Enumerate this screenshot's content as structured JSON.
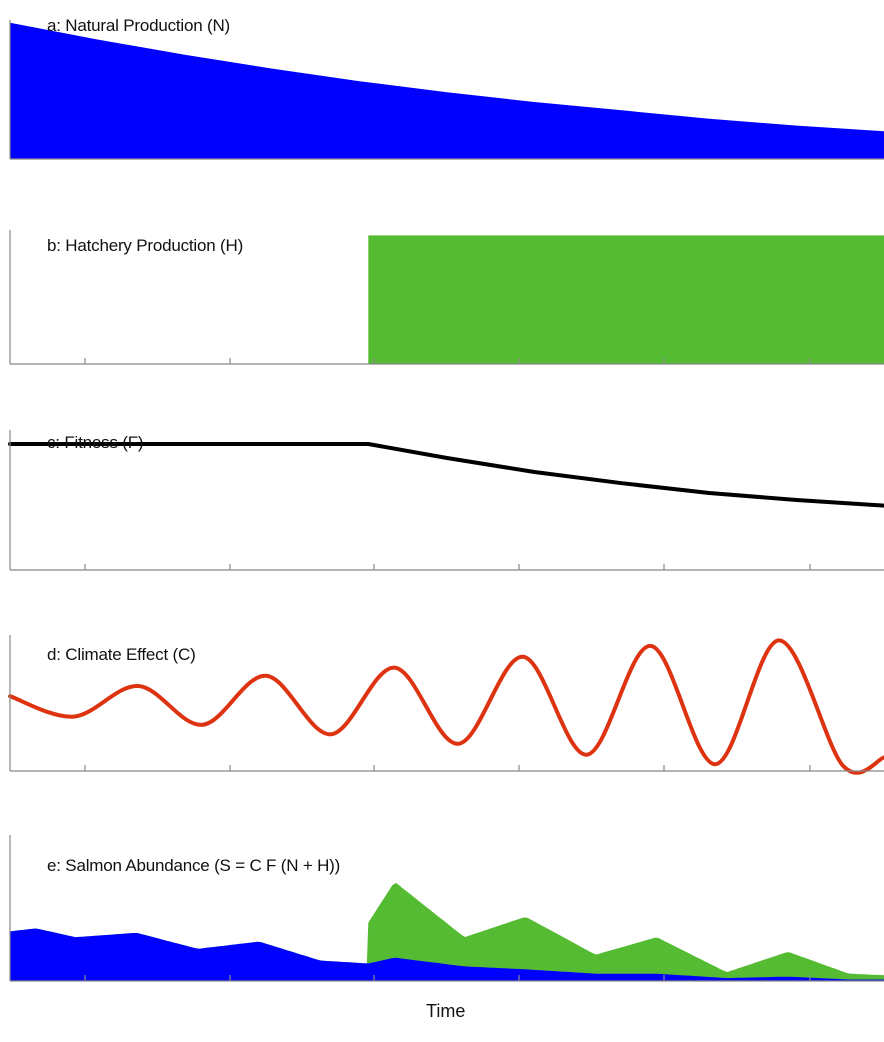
{
  "chart_data": {
    "type": "multi-panel",
    "xlabel": "Time",
    "x_domain": [
      0,
      100
    ],
    "hatchery_start": 41,
    "panels": [
      {
        "id": "a",
        "title": "a: Natural Production (N)",
        "type": "area",
        "color": "#0000ff",
        "ylim": [
          0,
          1
        ],
        "x": [
          0,
          10,
          20,
          30,
          40,
          50,
          60,
          70,
          80,
          90,
          100
        ],
        "values": [
          0.98,
          0.86,
          0.75,
          0.65,
          0.56,
          0.48,
          0.41,
          0.35,
          0.29,
          0.24,
          0.2
        ]
      },
      {
        "id": "b",
        "title": "b: Hatchery Production (H)",
        "type": "area",
        "color": "#55bb33",
        "ylim": [
          0,
          1
        ],
        "x": [
          0,
          41,
          41,
          100
        ],
        "values": [
          0,
          0,
          0.96,
          0.96
        ]
      },
      {
        "id": "c",
        "title": "c: Fitness (F)",
        "type": "line",
        "color": "#000000",
        "ylim": [
          0,
          1
        ],
        "x": [
          0,
          41,
          50,
          60,
          70,
          80,
          90,
          100
        ],
        "values": [
          0.9,
          0.9,
          0.8,
          0.7,
          0.62,
          0.55,
          0.5,
          0.46
        ]
      },
      {
        "id": "d",
        "title": "d: Climate Effect (C)",
        "type": "line",
        "color": "#dd3311",
        "ylim": [
          -1,
          1
        ],
        "x": [
          0,
          7.3,
          14.7,
          22,
          29.3,
          36.7,
          44,
          51.3,
          58.7,
          66,
          73.3,
          80.7,
          88,
          95.3,
          100
        ],
        "values": [
          0.1,
          -0.2,
          0.25,
          -0.32,
          0.4,
          -0.46,
          0.52,
          -0.6,
          0.68,
          -0.76,
          0.84,
          -0.9,
          0.92,
          -0.92,
          -0.8
        ]
      },
      {
        "id": "e",
        "title": "e: Salmon Abundance (S = C F (N + H))",
        "type": "stacked-area",
        "ylim": [
          0,
          1
        ],
        "x": [
          0,
          3,
          7.5,
          14.5,
          21.5,
          28.5,
          35.5,
          40.9,
          41,
          44,
          52,
          59,
          67,
          74,
          82,
          89,
          96,
          100
        ],
        "series": [
          {
            "name": "N",
            "color": "#0000ff",
            "values": [
              0.34,
              0.36,
              0.3,
              0.33,
              0.22,
              0.27,
              0.14,
              0.12,
              0.12,
              0.16,
              0.1,
              0.08,
              0.05,
              0.05,
              0.02,
              0.03,
              0.01,
              0.01
            ]
          },
          {
            "name": "H",
            "color": "#55bb33",
            "values": [
              0,
              0,
              0,
              0,
              0,
              0,
              0,
              0,
              0.28,
              0.52,
              0.2,
              0.36,
              0.13,
              0.25,
              0.04,
              0.17,
              0.04,
              0.03
            ]
          }
        ]
      }
    ]
  }
}
